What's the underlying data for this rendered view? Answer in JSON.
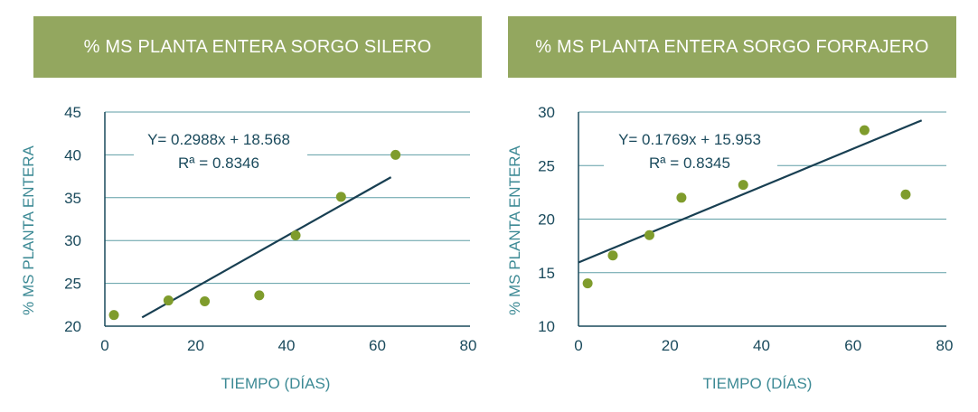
{
  "banners": [
    "% MS PLANTA ENTERA SORGO SILERO",
    "% MS PLANTA ENTERA SORGO FORRAJERO"
  ],
  "chart_data": [
    {
      "type": "scatter",
      "title": "% MS PLANTA ENTERA SORGO SILERO",
      "xlabel": "TIEMPO (DÍAS)",
      "ylabel": "% MS PLANTA ENTERA",
      "xlim": [
        0,
        80
      ],
      "ylim": [
        20,
        45
      ],
      "xticks": [
        0,
        20,
        40,
        60,
        80
      ],
      "yticks": [
        20,
        25,
        30,
        35,
        40,
        45
      ],
      "grid": "horizontal",
      "points": [
        {
          "x": 2,
          "y": 21.3
        },
        {
          "x": 14,
          "y": 23.0
        },
        {
          "x": 22,
          "y": 22.9
        },
        {
          "x": 34,
          "y": 23.6
        },
        {
          "x": 42,
          "y": 30.6
        },
        {
          "x": 52,
          "y": 35.1
        },
        {
          "x": 64,
          "y": 40.0
        }
      ],
      "trendline": {
        "slope": 0.2988,
        "intercept": 18.568,
        "x_start": 8.2,
        "x_end": 63
      },
      "equation": "Y= 0.2988x + 18.568",
      "r2": "Rª = 0.8346"
    },
    {
      "type": "scatter",
      "title": "% MS PLANTA ENTERA SORGO FORRAJERO",
      "xlabel": "TIEMPO (DÍAS)",
      "ylabel": "% MS PLANTA ENTERA",
      "xlim": [
        0,
        80
      ],
      "ylim": [
        10,
        30
      ],
      "xticks": [
        0,
        20,
        40,
        60,
        80
      ],
      "yticks": [
        10,
        15,
        20,
        25,
        30
      ],
      "grid": "horizontal",
      "points": [
        {
          "x": 2,
          "y": 14.0
        },
        {
          "x": 7.5,
          "y": 16.6
        },
        {
          "x": 15.5,
          "y": 18.5
        },
        {
          "x": 22.5,
          "y": 22.0
        },
        {
          "x": 36,
          "y": 23.2
        },
        {
          "x": 62.5,
          "y": 28.3
        },
        {
          "x": 71.5,
          "y": 22.3
        }
      ],
      "trendline": {
        "slope": 0.1769,
        "intercept": 15.953,
        "x_start": 0,
        "x_end": 75
      },
      "equation": "Y= 0.1769x + 15.953",
      "r2": "Rª = 0.8345"
    }
  ]
}
